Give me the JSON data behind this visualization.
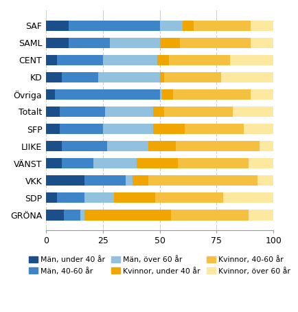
{
  "parties": [
    "SAF",
    "SAML",
    "CENT",
    "KD",
    "Övriga",
    "Totalt",
    "SFP",
    "LIIKE",
    "VÄNST",
    "VKK",
    "SDP",
    "GRÖNA"
  ],
  "segments": {
    "man_under40": [
      10,
      10,
      5,
      7,
      4,
      6,
      6,
      7,
      7,
      17,
      5,
      8
    ],
    "man_4060": [
      40,
      18,
      20,
      16,
      46,
      20,
      19,
      20,
      14,
      18,
      12,
      7
    ],
    "man_over60": [
      10,
      22,
      24,
      27,
      1,
      21,
      22,
      18,
      19,
      3,
      13,
      2
    ],
    "kvinna_under40": [
      5,
      9,
      5,
      2,
      5,
      5,
      14,
      12,
      18,
      7,
      18,
      38
    ],
    "kvinna_4060": [
      25,
      31,
      27,
      25,
      34,
      30,
      26,
      37,
      31,
      48,
      30,
      34
    ],
    "kvinna_over60": [
      10,
      10,
      19,
      23,
      10,
      18,
      13,
      6,
      11,
      7,
      22,
      11
    ]
  },
  "colors": {
    "man_under40": "#1a4f8a",
    "man_4060": "#3d85c8",
    "man_over60": "#92c0df",
    "kvinna_under40": "#f0a500",
    "kvinna_4060": "#f5c040",
    "kvinna_over60": "#fde8a0"
  },
  "legend_labels": [
    "Män, under 40 år",
    "Män, 40-60 år",
    "Män, över 60 år",
    "Kvinnor, under 40 år",
    "Kvinnor, 40-60 år",
    "Kvinnor, över 60 år"
  ],
  "legend_seg_order": [
    "man_under40",
    "man_4060",
    "man_over60",
    "kvinna_under40",
    "kvinna_4060",
    "kvinna_over60"
  ],
  "xlim": [
    0,
    100
  ],
  "xticks": [
    0,
    25,
    50,
    75,
    100
  ],
  "figsize": [
    4.35,
    4.54
  ],
  "dpi": 100,
  "bg_color": "#ffffff",
  "grid_color": "#cccccc",
  "bar_height": 0.6
}
